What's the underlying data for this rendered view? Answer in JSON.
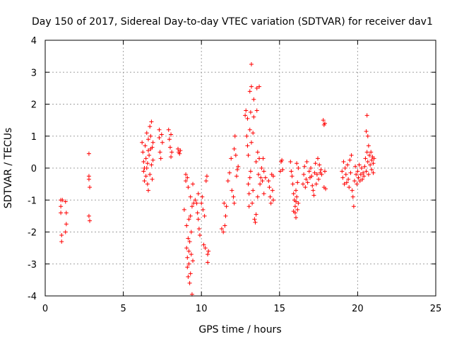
{
  "chart_data": {
    "type": "scatter",
    "title": "Day 150 of 2017, Sidereal Day-to-day VTEC variation (SDTVAR) for receiver dav1",
    "xlabel": "GPS time / hours",
    "ylabel": "SDTVAR / TECUs",
    "xlim": [
      0,
      25
    ],
    "ylim": [
      -4,
      4
    ],
    "xticks": [
      0,
      5,
      10,
      15,
      20,
      25
    ],
    "yticks": [
      -4,
      -3,
      -2,
      -1,
      0,
      1,
      2,
      3,
      4
    ],
    "grid": true,
    "marker": "+",
    "color": "#ff0000",
    "series": [
      {
        "name": "SDTVAR",
        "points": [
          [
            1.0,
            -1.0
          ],
          [
            1.0,
            -1.2
          ],
          [
            1.0,
            -1.4
          ],
          [
            1.05,
            -2.1
          ],
          [
            1.05,
            -2.3
          ],
          [
            1.1,
            -1.0
          ],
          [
            1.3,
            -1.05
          ],
          [
            1.35,
            -1.4
          ],
          [
            1.35,
            -1.75
          ],
          [
            1.3,
            -2.0
          ],
          [
            2.8,
            -0.25
          ],
          [
            2.8,
            -0.35
          ],
          [
            2.85,
            -0.6
          ],
          [
            2.8,
            0.45
          ],
          [
            2.8,
            -1.5
          ],
          [
            2.85,
            -1.65
          ],
          [
            6.2,
            0.8
          ],
          [
            6.25,
            0.5
          ],
          [
            6.3,
            0.2
          ],
          [
            6.3,
            -0.1
          ],
          [
            6.35,
            -0.4
          ],
          [
            6.4,
            0.7
          ],
          [
            6.45,
            0.3
          ],
          [
            6.5,
            1.1
          ],
          [
            6.5,
            0.0
          ],
          [
            6.55,
            -0.5
          ],
          [
            6.6,
            -0.7
          ],
          [
            6.6,
            0.9
          ],
          [
            6.65,
            0.4
          ],
          [
            6.7,
            1.3
          ],
          [
            6.7,
            -0.2
          ],
          [
            6.75,
            0.6
          ],
          [
            6.8,
            1.45
          ],
          [
            6.8,
            0.1
          ],
          [
            6.85,
            -0.35
          ],
          [
            6.9,
            0.8
          ],
          [
            6.9,
            0.25
          ],
          [
            6.35,
            0.0
          ],
          [
            6.45,
            -0.25
          ],
          [
            6.55,
            0.15
          ],
          [
            6.75,
            1.0
          ],
          [
            6.6,
            0.55
          ],
          [
            6.85,
            0.65
          ],
          [
            7.3,
            1.2
          ],
          [
            7.3,
            0.95
          ],
          [
            7.35,
            0.5
          ],
          [
            7.4,
            0.3
          ],
          [
            7.45,
            1.05
          ],
          [
            7.5,
            0.8
          ],
          [
            7.9,
            1.2
          ],
          [
            7.95,
            0.9
          ],
          [
            8.0,
            0.65
          ],
          [
            8.05,
            1.05
          ],
          [
            8.05,
            0.35
          ],
          [
            8.1,
            0.5
          ],
          [
            8.5,
            0.6
          ],
          [
            8.55,
            0.5
          ],
          [
            8.6,
            0.45
          ],
          [
            8.65,
            0.55
          ],
          [
            8.9,
            -1.3
          ],
          [
            9.0,
            -0.2
          ],
          [
            9.0,
            -0.4
          ],
          [
            9.05,
            -2.5
          ],
          [
            9.1,
            -2.8
          ],
          [
            9.1,
            -3.1
          ],
          [
            9.15,
            -0.6
          ],
          [
            9.15,
            -3.4
          ],
          [
            9.2,
            -2.6
          ],
          [
            9.2,
            -3.0
          ],
          [
            9.25,
            -2.3
          ],
          [
            9.25,
            -3.6
          ],
          [
            9.3,
            -0.9
          ],
          [
            9.3,
            -3.3
          ],
          [
            9.35,
            -2.0
          ],
          [
            9.35,
            -2.7
          ],
          [
            9.4,
            -1.2
          ],
          [
            9.4,
            -3.95
          ],
          [
            9.45,
            -0.5
          ],
          [
            9.45,
            -2.9
          ],
          [
            9.5,
            -1.1
          ],
          [
            9.1,
            -0.3
          ],
          [
            9.2,
            -1.6
          ],
          [
            9.3,
            -1.5
          ],
          [
            9.05,
            -1.8
          ],
          [
            9.15,
            -2.2
          ],
          [
            9.6,
            -1.0
          ],
          [
            9.7,
            -1.1
          ],
          [
            9.75,
            -1.4
          ],
          [
            9.8,
            -1.6
          ],
          [
            9.85,
            -1.9
          ],
          [
            9.9,
            -2.1
          ],
          [
            9.8,
            -0.8
          ],
          [
            10.0,
            -1.1
          ],
          [
            10.05,
            -0.9
          ],
          [
            10.1,
            -1.3
          ],
          [
            10.2,
            -1.5
          ],
          [
            10.15,
            -2.4
          ],
          [
            10.25,
            -2.5
          ],
          [
            10.3,
            -0.4
          ],
          [
            10.35,
            -0.25
          ],
          [
            10.4,
            -2.7
          ],
          [
            10.4,
            -2.95
          ],
          [
            10.45,
            -2.6
          ],
          [
            11.3,
            -1.9
          ],
          [
            11.4,
            -2.0
          ],
          [
            11.5,
            -1.8
          ],
          [
            11.55,
            -1.5
          ],
          [
            11.45,
            -1.1
          ],
          [
            11.6,
            -1.2
          ],
          [
            11.7,
            -0.4
          ],
          [
            11.8,
            -0.15
          ],
          [
            11.9,
            0.3
          ],
          [
            11.95,
            -0.7
          ],
          [
            12.05,
            -0.9
          ],
          [
            12.1,
            -1.1
          ],
          [
            12.1,
            0.6
          ],
          [
            12.15,
            1.0
          ],
          [
            12.2,
            0.4
          ],
          [
            12.25,
            -0.25
          ],
          [
            12.3,
            -0.05
          ],
          [
            12.35,
            0.05
          ],
          [
            12.8,
            1.65
          ],
          [
            12.85,
            1.8
          ],
          [
            12.9,
            1.0
          ],
          [
            12.95,
            0.7
          ],
          [
            12.95,
            1.55
          ],
          [
            13.0,
            0.4
          ],
          [
            13.0,
            -0.5
          ],
          [
            13.05,
            -1.2
          ],
          [
            13.05,
            -0.8
          ],
          [
            13.1,
            2.4
          ],
          [
            13.1,
            1.2
          ],
          [
            13.1,
            -0.3
          ],
          [
            13.15,
            1.75
          ],
          [
            13.15,
            -0.1
          ],
          [
            13.2,
            3.25
          ],
          [
            13.2,
            2.55
          ],
          [
            13.2,
            0.8
          ],
          [
            13.25,
            -1.1
          ],
          [
            13.3,
            1.1
          ],
          [
            13.3,
            -0.7
          ],
          [
            13.35,
            2.15
          ],
          [
            13.35,
            1.6
          ],
          [
            13.4,
            -1.6
          ],
          [
            13.45,
            -1.7
          ],
          [
            13.5,
            -1.45
          ],
          [
            13.5,
            0.2
          ],
          [
            13.55,
            2.5
          ],
          [
            13.55,
            1.8
          ],
          [
            13.6,
            0.5
          ],
          [
            13.6,
            -0.9
          ],
          [
            13.65,
            -0.2
          ],
          [
            13.7,
            0.3
          ],
          [
            13.7,
            2.55
          ],
          [
            13.75,
            -0.5
          ],
          [
            13.8,
            -0.3
          ],
          [
            13.85,
            0.0
          ],
          [
            13.9,
            -0.4
          ],
          [
            13.95,
            0.3
          ],
          [
            14.0,
            -0.8
          ],
          [
            14.0,
            -0.1
          ],
          [
            14.1,
            -0.3
          ],
          [
            14.3,
            -0.4
          ],
          [
            14.35,
            -0.6
          ],
          [
            14.4,
            -0.9
          ],
          [
            14.45,
            -1.1
          ],
          [
            14.5,
            -0.2
          ],
          [
            14.55,
            -0.7
          ],
          [
            14.6,
            -0.25
          ],
          [
            14.6,
            -1.0
          ],
          [
            15.05,
            -0.1
          ],
          [
            15.1,
            0.2
          ],
          [
            15.15,
            0.25
          ],
          [
            15.2,
            -0.05
          ],
          [
            15.7,
            0.2
          ],
          [
            15.75,
            -0.1
          ],
          [
            15.8,
            -0.25
          ],
          [
            15.85,
            -0.5
          ],
          [
            15.9,
            -0.8
          ],
          [
            15.95,
            -1.0
          ],
          [
            16.0,
            -1.2
          ],
          [
            16.0,
            -1.4
          ],
          [
            16.05,
            -0.7
          ],
          [
            16.05,
            -1.55
          ],
          [
            16.1,
            -0.9
          ],
          [
            16.1,
            0.15
          ],
          [
            16.15,
            -1.3
          ],
          [
            16.15,
            -0.45
          ],
          [
            16.2,
            0.0
          ],
          [
            16.2,
            -1.1
          ],
          [
            15.9,
            -1.35
          ],
          [
            16.05,
            -1.05
          ],
          [
            16.5,
            -0.5
          ],
          [
            16.55,
            -0.2
          ],
          [
            16.6,
            0.05
          ],
          [
            16.65,
            -0.6
          ],
          [
            16.7,
            -0.35
          ],
          [
            16.75,
            0.2
          ],
          [
            16.8,
            -0.45
          ],
          [
            16.9,
            -0.1
          ],
          [
            16.95,
            -0.3
          ],
          [
            17.0,
            0.0
          ],
          [
            17.05,
            -0.25
          ],
          [
            17.1,
            -0.55
          ],
          [
            17.15,
            -0.7
          ],
          [
            17.2,
            -0.85
          ],
          [
            17.25,
            -0.15
          ],
          [
            17.3,
            0.15
          ],
          [
            17.35,
            -0.5
          ],
          [
            17.4,
            -0.2
          ],
          [
            17.45,
            0.3
          ],
          [
            17.5,
            -0.35
          ],
          [
            17.55,
            0.1
          ],
          [
            17.6,
            -0.15
          ],
          [
            17.65,
            -0.05
          ],
          [
            17.7,
            -0.2
          ],
          [
            17.8,
            1.5
          ],
          [
            17.85,
            1.35
          ],
          [
            17.9,
            1.4
          ],
          [
            17.85,
            -0.6
          ],
          [
            17.9,
            -0.1
          ],
          [
            17.95,
            -0.65
          ],
          [
            19.0,
            -0.1
          ],
          [
            19.05,
            -0.3
          ],
          [
            19.1,
            0.2
          ],
          [
            19.15,
            -0.5
          ],
          [
            19.2,
            0.0
          ],
          [
            19.25,
            -0.2
          ],
          [
            19.3,
            -0.45
          ],
          [
            19.35,
            0.1
          ],
          [
            19.4,
            -0.35
          ],
          [
            19.45,
            -0.6
          ],
          [
            19.5,
            0.25
          ],
          [
            19.55,
            -0.15
          ],
          [
            19.6,
            0.4
          ],
          [
            19.65,
            -0.7
          ],
          [
            19.7,
            -0.9
          ],
          [
            19.75,
            -1.2
          ],
          [
            19.8,
            -0.4
          ],
          [
            19.85,
            0.05
          ],
          [
            19.9,
            -0.2
          ],
          [
            19.95,
            -0.5
          ],
          [
            20.0,
            -0.1
          ],
          [
            20.05,
            -0.3
          ],
          [
            20.1,
            0.1
          ],
          [
            20.15,
            -0.4
          ],
          [
            20.2,
            -0.2
          ],
          [
            20.25,
            0.0
          ],
          [
            20.3,
            -0.35
          ],
          [
            20.35,
            -0.15
          ],
          [
            20.4,
            -0.25
          ],
          [
            20.45,
            0.05
          ],
          [
            20.5,
            0.3
          ],
          [
            20.55,
            1.15
          ],
          [
            20.55,
            -0.1
          ],
          [
            20.6,
            1.65
          ],
          [
            20.6,
            0.5
          ],
          [
            20.65,
            1.0
          ],
          [
            20.65,
            0.2
          ],
          [
            20.7,
            0.7
          ],
          [
            20.7,
            -0.2
          ],
          [
            20.75,
            0.4
          ],
          [
            20.8,
            0.1
          ],
          [
            20.85,
            0.5
          ],
          [
            20.9,
            0.25
          ],
          [
            20.9,
            -0.05
          ],
          [
            20.95,
            0.35
          ],
          [
            21.0,
            0.15
          ],
          [
            21.0,
            -0.15
          ],
          [
            21.05,
            0.3
          ]
        ]
      }
    ]
  }
}
